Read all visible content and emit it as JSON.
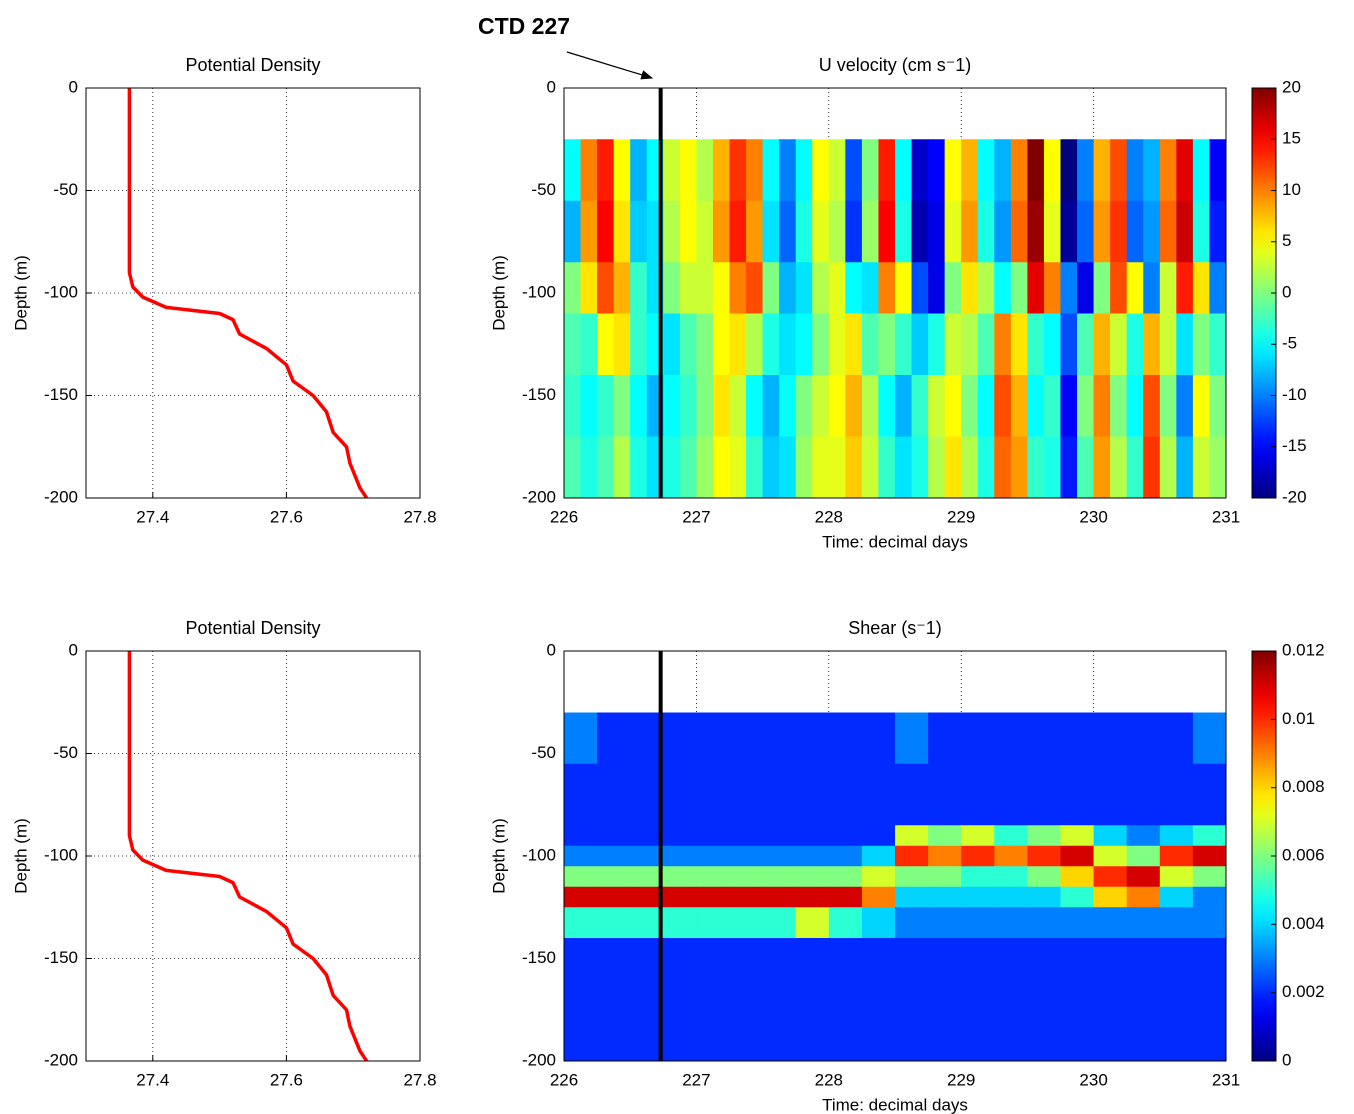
{
  "chart_data": [
    {
      "type": "line",
      "title": "Potential Density",
      "ylabel": "Depth (m)",
      "x": [
        27.365,
        27.365,
        27.37,
        27.385,
        27.42,
        27.5,
        27.52,
        27.53,
        27.57,
        27.6,
        27.61,
        27.64,
        27.66,
        27.67,
        27.69,
        27.695,
        27.71,
        27.72
      ],
      "series": [
        {
          "color": "#ff0000",
          "values": [
            0,
            -90,
            -97,
            -102,
            -107,
            -110,
            -113,
            -120,
            -127,
            -135,
            -143,
            -150,
            -158,
            -168,
            -175,
            -183,
            -195,
            -200
          ]
        }
      ],
      "xlim": [
        27.3,
        27.8
      ],
      "xticks": [
        27.4,
        27.6,
        27.8
      ],
      "ylim": [
        -200,
        0
      ],
      "yticks": [
        -200,
        -150,
        -100,
        -50,
        0
      ],
      "grid": true
    },
    {
      "type": "heatmap",
      "title": "U velocity (cm s⁻1)",
      "xlabel": "Time: decimal days",
      "ylabel": "Depth (m)",
      "annotation": "CTD 227",
      "colormap": "jet",
      "clim": [
        -20,
        20
      ],
      "cticks": [
        -20,
        -15,
        -10,
        -5,
        0,
        5,
        10,
        15,
        20
      ],
      "vline": {
        "x": 226.73,
        "color": "#000000"
      },
      "xlim": [
        226,
        231
      ],
      "xticks": [
        226,
        227,
        228,
        229,
        230,
        231
      ],
      "ylim": [
        -200,
        0
      ],
      "yticks": [
        -200,
        -150,
        -100,
        -50,
        0
      ],
      "grid": true,
      "xedges": [
        226,
        226.125,
        226.25,
        226.375,
        226.5,
        226.625,
        226.75,
        226.875,
        227,
        227.125,
        227.25,
        227.375,
        227.5,
        227.625,
        227.75,
        227.875,
        228,
        228.125,
        228.25,
        228.375,
        228.5,
        228.625,
        228.75,
        228.875,
        229,
        229.125,
        229.25,
        229.375,
        229.5,
        229.625,
        229.75,
        229.875,
        230,
        230.125,
        230.25,
        230.375,
        230.5,
        230.625,
        230.75,
        230.875,
        231
      ],
      "yedges": [
        -25,
        -55,
        -85,
        -110,
        -140,
        -170,
        -200
      ],
      "z": [
        [
          -5,
          10,
          14,
          5,
          -8,
          -5,
          3,
          5,
          2,
          8,
          13,
          10,
          -5,
          -10,
          -5,
          5,
          3,
          -12,
          0,
          14,
          -5,
          -17,
          -15,
          5,
          8,
          -5,
          -8,
          10,
          20,
          5,
          -20,
          -10,
          8,
          12,
          -10,
          -8,
          10,
          16,
          -5,
          -15
        ],
        [
          -8,
          9,
          15,
          6,
          -7,
          -6,
          2,
          5,
          3,
          9,
          14,
          9,
          -6,
          -11,
          -4,
          4,
          2,
          -13,
          1,
          15,
          -4,
          -18,
          -16,
          4,
          9,
          -4,
          -9,
          11,
          19,
          4,
          -19,
          -11,
          9,
          13,
          -11,
          -9,
          11,
          17,
          -4,
          -14
        ],
        [
          0,
          6,
          12,
          8,
          -3,
          -6,
          0,
          3,
          3,
          5,
          10,
          12,
          0,
          -8,
          -6,
          2,
          4,
          -5,
          -6,
          10,
          5,
          -12,
          -16,
          0,
          6,
          2,
          -5,
          0,
          16,
          10,
          -10,
          -16,
          0,
          12,
          5,
          -10,
          3,
          14,
          6,
          -10
        ],
        [
          -2,
          -3,
          5,
          6,
          -3,
          -5,
          -6,
          -2,
          0,
          5,
          6,
          2,
          -4,
          -6,
          -5,
          0,
          4,
          6,
          -2,
          0,
          -3,
          -7,
          -4,
          3,
          2,
          -2,
          10,
          6,
          -3,
          -5,
          -12,
          -2,
          8,
          3,
          -4,
          8,
          3,
          -6,
          0,
          -3
        ],
        [
          -3,
          -5,
          -3,
          0,
          -5,
          -8,
          -5,
          -3,
          0,
          6,
          3,
          -5,
          -8,
          -5,
          0,
          3,
          5,
          8,
          2,
          -5,
          -8,
          -3,
          3,
          5,
          0,
          -5,
          12,
          8,
          -5,
          -3,
          -15,
          0,
          10,
          0,
          -5,
          12,
          0,
          -10,
          5,
          0
        ],
        [
          -2,
          -4,
          -2,
          2,
          -4,
          -6,
          -4,
          -2,
          1,
          5,
          4,
          -3,
          -7,
          -6,
          1,
          4,
          4,
          7,
          3,
          -3,
          -6,
          -4,
          2,
          6,
          2,
          -4,
          11,
          9,
          -3,
          -4,
          -14,
          -2,
          9,
          2,
          -3,
          13,
          2,
          -8,
          3,
          1
        ]
      ]
    },
    {
      "type": "line",
      "title": "Potential Density",
      "ylabel": "Depth (m)",
      "x": [
        27.365,
        27.365,
        27.37,
        27.385,
        27.42,
        27.5,
        27.52,
        27.53,
        27.57,
        27.6,
        27.61,
        27.64,
        27.66,
        27.67,
        27.69,
        27.695,
        27.71,
        27.72
      ],
      "series": [
        {
          "color": "#ff0000",
          "values": [
            0,
            -90,
            -97,
            -102,
            -107,
            -110,
            -113,
            -120,
            -127,
            -135,
            -143,
            -150,
            -158,
            -168,
            -175,
            -183,
            -195,
            -200
          ]
        }
      ],
      "xlim": [
        27.3,
        27.8
      ],
      "xticks": [
        27.4,
        27.6,
        27.8
      ],
      "ylim": [
        -200,
        0
      ],
      "yticks": [
        -200,
        -150,
        -100,
        -50,
        0
      ],
      "grid": true
    },
    {
      "type": "heatmap",
      "title": "Shear (s⁻1)",
      "xlabel": "Time: decimal days",
      "ylabel": "Depth (m)",
      "colormap": "jet",
      "clim": [
        0,
        0.012
      ],
      "cticks": [
        0,
        0.002,
        0.004,
        0.006,
        0.008,
        0.01,
        0.012
      ],
      "vline": {
        "x": 226.73,
        "color": "#000000"
      },
      "xlim": [
        226,
        231
      ],
      "xticks": [
        226,
        227,
        228,
        229,
        230,
        231
      ],
      "ylim": [
        -200,
        0
      ],
      "yticks": [
        -200,
        -150,
        -100,
        -50,
        0
      ],
      "grid": true,
      "xedges": [
        226,
        226.25,
        226.5,
        226.75,
        227,
        227.25,
        227.5,
        227.75,
        228,
        228.25,
        228.5,
        228.75,
        229,
        229.25,
        229.5,
        229.75,
        230,
        230.25,
        230.5,
        230.75,
        231
      ],
      "yedges": [
        -30,
        -55,
        -85,
        -95,
        -105,
        -115,
        -125,
        -140,
        -170,
        -200
      ],
      "z": [
        [
          0.003,
          0.002,
          0.002,
          0.002,
          0.002,
          0.002,
          0.002,
          0.002,
          0.002,
          0.002,
          0.003,
          0.002,
          0.002,
          0.002,
          0.002,
          0.002,
          0.002,
          0.002,
          0.002,
          0.003
        ],
        [
          0.002,
          0.002,
          0.002,
          0.002,
          0.002,
          0.002,
          0.002,
          0.002,
          0.002,
          0.002,
          0.002,
          0.002,
          0.002,
          0.002,
          0.002,
          0.002,
          0.002,
          0.002,
          0.002,
          0.002
        ],
        [
          0.002,
          0.002,
          0.002,
          0.002,
          0.002,
          0.002,
          0.002,
          0.002,
          0.002,
          0.002,
          0.007,
          0.006,
          0.007,
          0.005,
          0.006,
          0.007,
          0.004,
          0.003,
          0.004,
          0.005
        ],
        [
          0.003,
          0.003,
          0.003,
          0.003,
          0.003,
          0.003,
          0.003,
          0.003,
          0.003,
          0.004,
          0.01,
          0.009,
          0.01,
          0.009,
          0.01,
          0.011,
          0.007,
          0.006,
          0.01,
          0.011
        ],
        [
          0.006,
          0.006,
          0.006,
          0.006,
          0.006,
          0.006,
          0.006,
          0.006,
          0.006,
          0.007,
          0.006,
          0.006,
          0.005,
          0.005,
          0.006,
          0.008,
          0.01,
          0.011,
          0.007,
          0.006
        ],
        [
          0.011,
          0.011,
          0.011,
          0.011,
          0.011,
          0.011,
          0.011,
          0.011,
          0.011,
          0.009,
          0.004,
          0.004,
          0.004,
          0.004,
          0.004,
          0.005,
          0.008,
          0.009,
          0.004,
          0.003
        ],
        [
          0.005,
          0.005,
          0.005,
          0.005,
          0.005,
          0.005,
          0.005,
          0.007,
          0.005,
          0.004,
          0.003,
          0.003,
          0.003,
          0.003,
          0.003,
          0.003,
          0.003,
          0.003,
          0.003,
          0.003
        ],
        [
          0.002,
          0.002,
          0.002,
          0.002,
          0.002,
          0.002,
          0.002,
          0.002,
          0.002,
          0.002,
          0.002,
          0.002,
          0.002,
          0.002,
          0.002,
          0.002,
          0.002,
          0.002,
          0.002,
          0.002
        ],
        [
          0.002,
          0.002,
          0.002,
          0.002,
          0.002,
          0.002,
          0.002,
          0.002,
          0.002,
          0.002,
          0.002,
          0.002,
          0.002,
          0.002,
          0.002,
          0.002,
          0.002,
          0.002,
          0.002,
          0.002
        ]
      ]
    }
  ]
}
